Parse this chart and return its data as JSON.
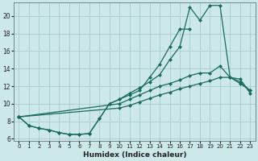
{
  "xlabel": "Humidex (Indice chaleur)",
  "xlim": [
    -0.5,
    23.5
  ],
  "ylim": [
    5.8,
    21.5
  ],
  "xticks": [
    0,
    1,
    2,
    3,
    4,
    5,
    6,
    7,
    8,
    9,
    10,
    11,
    12,
    13,
    14,
    15,
    16,
    17,
    18,
    19,
    20,
    21,
    22,
    23
  ],
  "yticks": [
    6,
    8,
    10,
    12,
    14,
    16,
    18,
    20
  ],
  "bg_color": "#cce8e8",
  "grid_color": "#aacccc",
  "line_color": "#1a6b5a",
  "curve1_x": [
    0,
    1,
    2,
    3,
    4,
    5,
    6,
    7,
    8,
    9,
    10,
    11,
    12,
    13,
    14,
    15,
    16,
    17
  ],
  "curve1_y": [
    8.5,
    7.5,
    7.2,
    7.0,
    6.7,
    6.5,
    6.5,
    6.6,
    8.3,
    10.0,
    10.5,
    11.0,
    11.5,
    13.0,
    14.5,
    16.5,
    18.5,
    18.5
  ],
  "curve2_x": [
    0,
    1,
    2,
    3,
    4,
    5,
    6,
    7,
    8,
    9,
    10,
    11,
    12,
    13,
    14,
    15,
    16,
    17,
    18,
    19,
    20,
    21,
    22,
    23
  ],
  "curve2_y": [
    8.5,
    7.5,
    7.2,
    7.0,
    6.7,
    6.5,
    6.5,
    6.6,
    8.3,
    10.0,
    10.5,
    11.2,
    11.8,
    12.5,
    13.3,
    15.0,
    16.5,
    21.0,
    19.5,
    21.2,
    21.2,
    13.0,
    12.3,
    11.5
  ],
  "curve3_x": [
    0,
    10,
    11,
    12,
    13,
    14,
    15,
    16,
    17,
    18,
    19,
    20,
    21,
    22,
    23
  ],
  "curve3_y": [
    8.5,
    10.0,
    10.5,
    11.0,
    11.5,
    12.0,
    12.3,
    12.7,
    13.2,
    13.5,
    13.5,
    14.3,
    13.0,
    12.5,
    11.5
  ],
  "curve4_x": [
    0,
    10,
    11,
    12,
    13,
    14,
    15,
    16,
    17,
    18,
    19,
    20,
    21,
    22,
    23
  ],
  "curve4_y": [
    8.5,
    9.5,
    9.8,
    10.2,
    10.6,
    11.0,
    11.3,
    11.7,
    12.0,
    12.3,
    12.6,
    13.0,
    13.0,
    12.8,
    11.2
  ]
}
